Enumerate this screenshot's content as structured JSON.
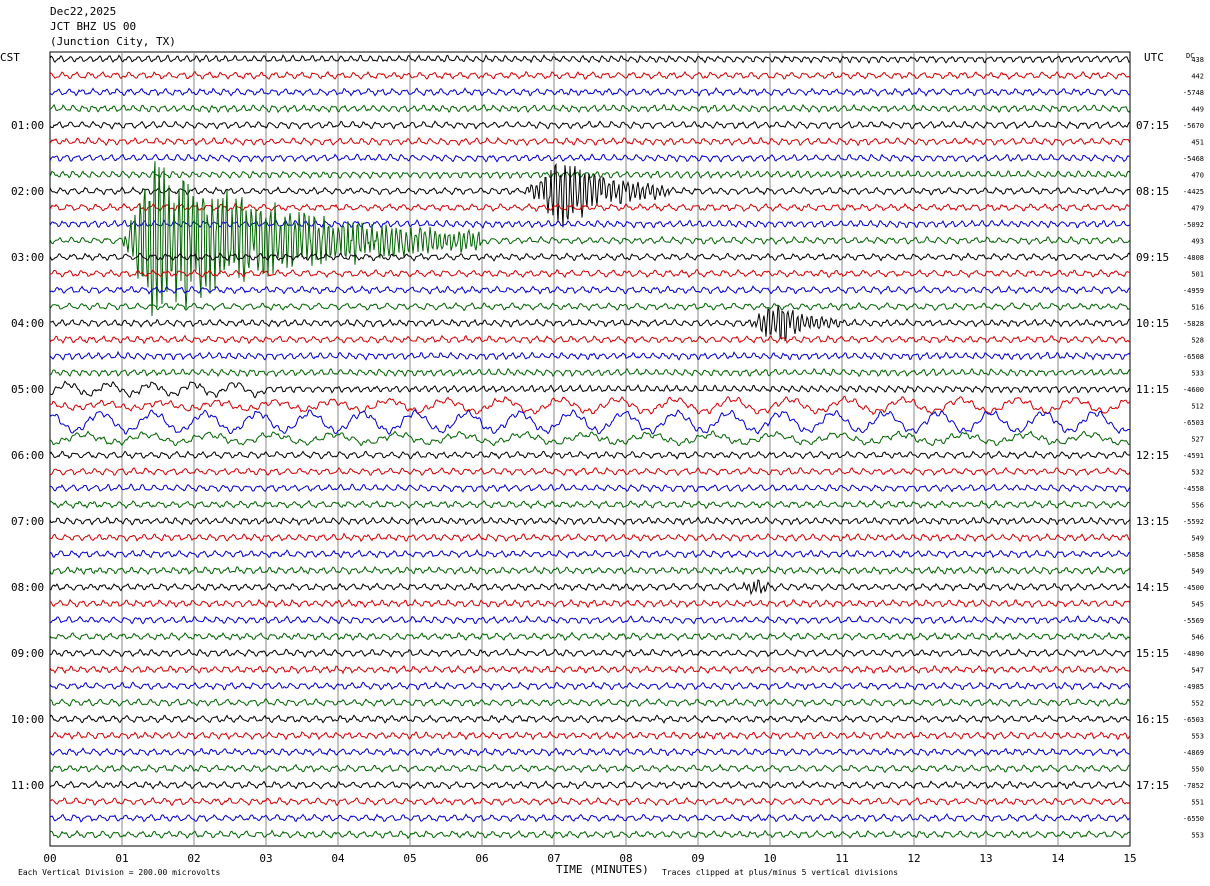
{
  "header": {
    "date": "Dec22,2025",
    "station": "JCT BHZ US 00",
    "location": "(Junction City, TX)"
  },
  "labels": {
    "left_zone": "CST",
    "right_zone": "UTC",
    "dc_label": "DC",
    "x_axis_title": "TIME (MINUTES)",
    "scale_note": "Each Vertical Division =  200.00 microvolts",
    "clip_note": "Traces clipped at plus/minus 5 vertical divisions"
  },
  "chart_data": {
    "type": "line",
    "title": "JCT BHZ US 00 (Junction City, TX) Dec22,2025",
    "xlabel": "TIME (MINUTES)",
    "ylabel": "",
    "xlim": [
      0,
      15
    ],
    "x_ticks": [
      "00",
      "01",
      "02",
      "03",
      "04",
      "05",
      "06",
      "07",
      "08",
      "09",
      "10",
      "11",
      "12",
      "13",
      "14",
      "15"
    ],
    "trace_count": 48,
    "trace_colors": [
      "#000000",
      "#d40000",
      "#0000cc",
      "#006400"
    ],
    "left_time_labels": [
      "01:00",
      "02:00",
      "03:00",
      "04:00",
      "05:00",
      "06:00",
      "07:00",
      "08:00",
      "09:00",
      "10:00",
      "11:00"
    ],
    "left_label_rows": [
      4,
      8,
      12,
      16,
      20,
      24,
      28,
      32,
      36,
      40,
      44
    ],
    "right_time_labels": [
      "07:15",
      "08:15",
      "09:15",
      "10:15",
      "11:15",
      "12:15",
      "13:15",
      "14:15",
      "15:15",
      "16:15",
      "17:15"
    ],
    "dc_offsets": [
      "438",
      "442",
      "-5748",
      "449",
      "-5670",
      "451",
      "-5468",
      "470",
      "-4425",
      "479",
      "-5092",
      "493",
      "-4808",
      "501",
      "-4959",
      "516",
      "-5828",
      "528",
      "-6508",
      "533",
      "-4600",
      "512",
      "-6503",
      "527",
      "-4591",
      "532",
      "-4558",
      "556",
      "-5592",
      "549",
      "-5858",
      "549",
      "-4500",
      "545",
      "-5569",
      "546",
      "-4890",
      "547",
      "-4985",
      "552",
      "-6503",
      "553",
      "-4869",
      "550",
      "-7852",
      "551",
      "-6550",
      "553"
    ],
    "events": [
      {
        "trace": 8,
        "start_min": 6.6,
        "peak_min": 7.1,
        "end_min": 8.6,
        "amplitude_div": 2.5
      },
      {
        "trace": 11,
        "start_min": 1.0,
        "peak_min": 1.45,
        "end_min": 6.0,
        "amplitude_div": 5,
        "clipped": true
      },
      {
        "trace": 16,
        "start_min": 9.7,
        "peak_min": 10.1,
        "end_min": 11.0,
        "amplitude_div": 1.3
      },
      {
        "trace": 32,
        "start_min": 9.6,
        "peak_min": 9.8,
        "end_min": 10.1,
        "amplitude_div": 0.5
      }
    ],
    "grid": true
  }
}
